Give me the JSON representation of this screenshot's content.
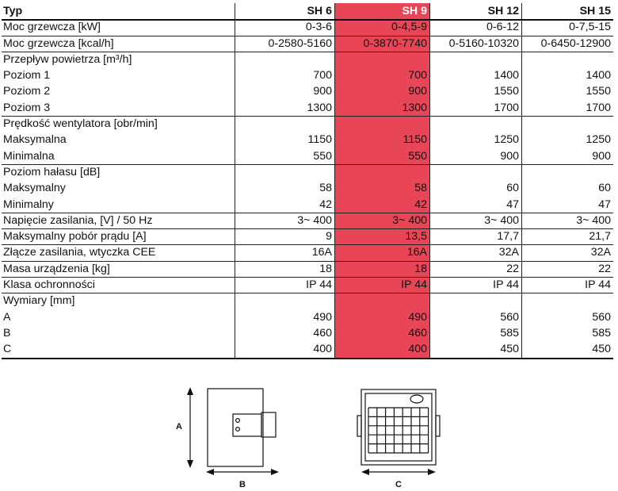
{
  "table": {
    "columns": [
      "Typ",
      "SH 6",
      "SH 9",
      "SH 12",
      "SH 15"
    ],
    "highlight_color": "#e84656",
    "rows": [
      {
        "label": "Moc grzewcza [kW]",
        "values": [
          "0-3-6",
          "0-4,5-9",
          "0-6-12",
          "0-7,5-15"
        ]
      },
      {
        "label": "Moc grzewcza [kcal/h]",
        "values": [
          "0-2580-5160",
          "0-3870-7740",
          "0-5160-10320",
          "0-6450-12900"
        ]
      },
      {
        "label": "Przepływ powietrza [m³/h]",
        "values": [
          "",
          "",
          "",
          ""
        ]
      },
      {
        "label": "Poziom 1",
        "values": [
          "700",
          "700",
          "1400",
          "1400"
        ]
      },
      {
        "label": "Poziom 2",
        "values": [
          "900",
          "900",
          "1550",
          "1550"
        ]
      },
      {
        "label": "Poziom 3",
        "values": [
          "1300",
          "1300",
          "1700",
          "1700"
        ]
      },
      {
        "label": "Prędkość wentylatora [obr/min]",
        "values": [
          "",
          "",
          "",
          ""
        ]
      },
      {
        "label": "Maksymalna",
        "values": [
          "1150",
          "1150",
          "1250",
          "1250"
        ]
      },
      {
        "label": "Minimalna",
        "values": [
          "550",
          "550",
          "900",
          "900"
        ]
      },
      {
        "label": "Poziom hałasu [dB]",
        "values": [
          "",
          "",
          "",
          ""
        ]
      },
      {
        "label": "Maksymalny",
        "values": [
          "58",
          "58",
          "60",
          "60"
        ]
      },
      {
        "label": "Minimalny",
        "values": [
          "42",
          "42",
          "47",
          "47"
        ]
      },
      {
        "label": "Napięcie zasilania, [V] / 50 Hz",
        "values": [
          "3~ 400",
          "3~ 400",
          "3~ 400",
          "3~ 400"
        ]
      },
      {
        "label": "Maksymalny pobór prądu [A]",
        "values": [
          "9",
          "13,5",
          "17,7",
          "21,7"
        ]
      },
      {
        "label": "Złącze zasilania, wtyczka CEE",
        "values": [
          "16A",
          "16A",
          "32A",
          "32A"
        ]
      },
      {
        "label": "Masa urządzenia  [kg]",
        "values": [
          "18",
          "18",
          "22",
          "22"
        ]
      },
      {
        "label": "Klasa ochronności",
        "values": [
          "IP 44",
          "IP 44",
          "IP 44",
          "IP 44"
        ]
      },
      {
        "label": "Wymiary [mm]",
        "values": [
          "",
          "",
          "",
          ""
        ]
      },
      {
        "label": "A",
        "values": [
          "490",
          "490",
          "560",
          "560"
        ]
      },
      {
        "label": "B",
        "values": [
          "460",
          "460",
          "585",
          "585"
        ]
      },
      {
        "label": "C",
        "values": [
          "400",
          "400",
          "450",
          "450"
        ]
      }
    ]
  },
  "diagrams": {
    "side_view": {
      "height_label": "A",
      "depth_label": "B"
    },
    "front_view": {
      "width_label": "C"
    }
  }
}
